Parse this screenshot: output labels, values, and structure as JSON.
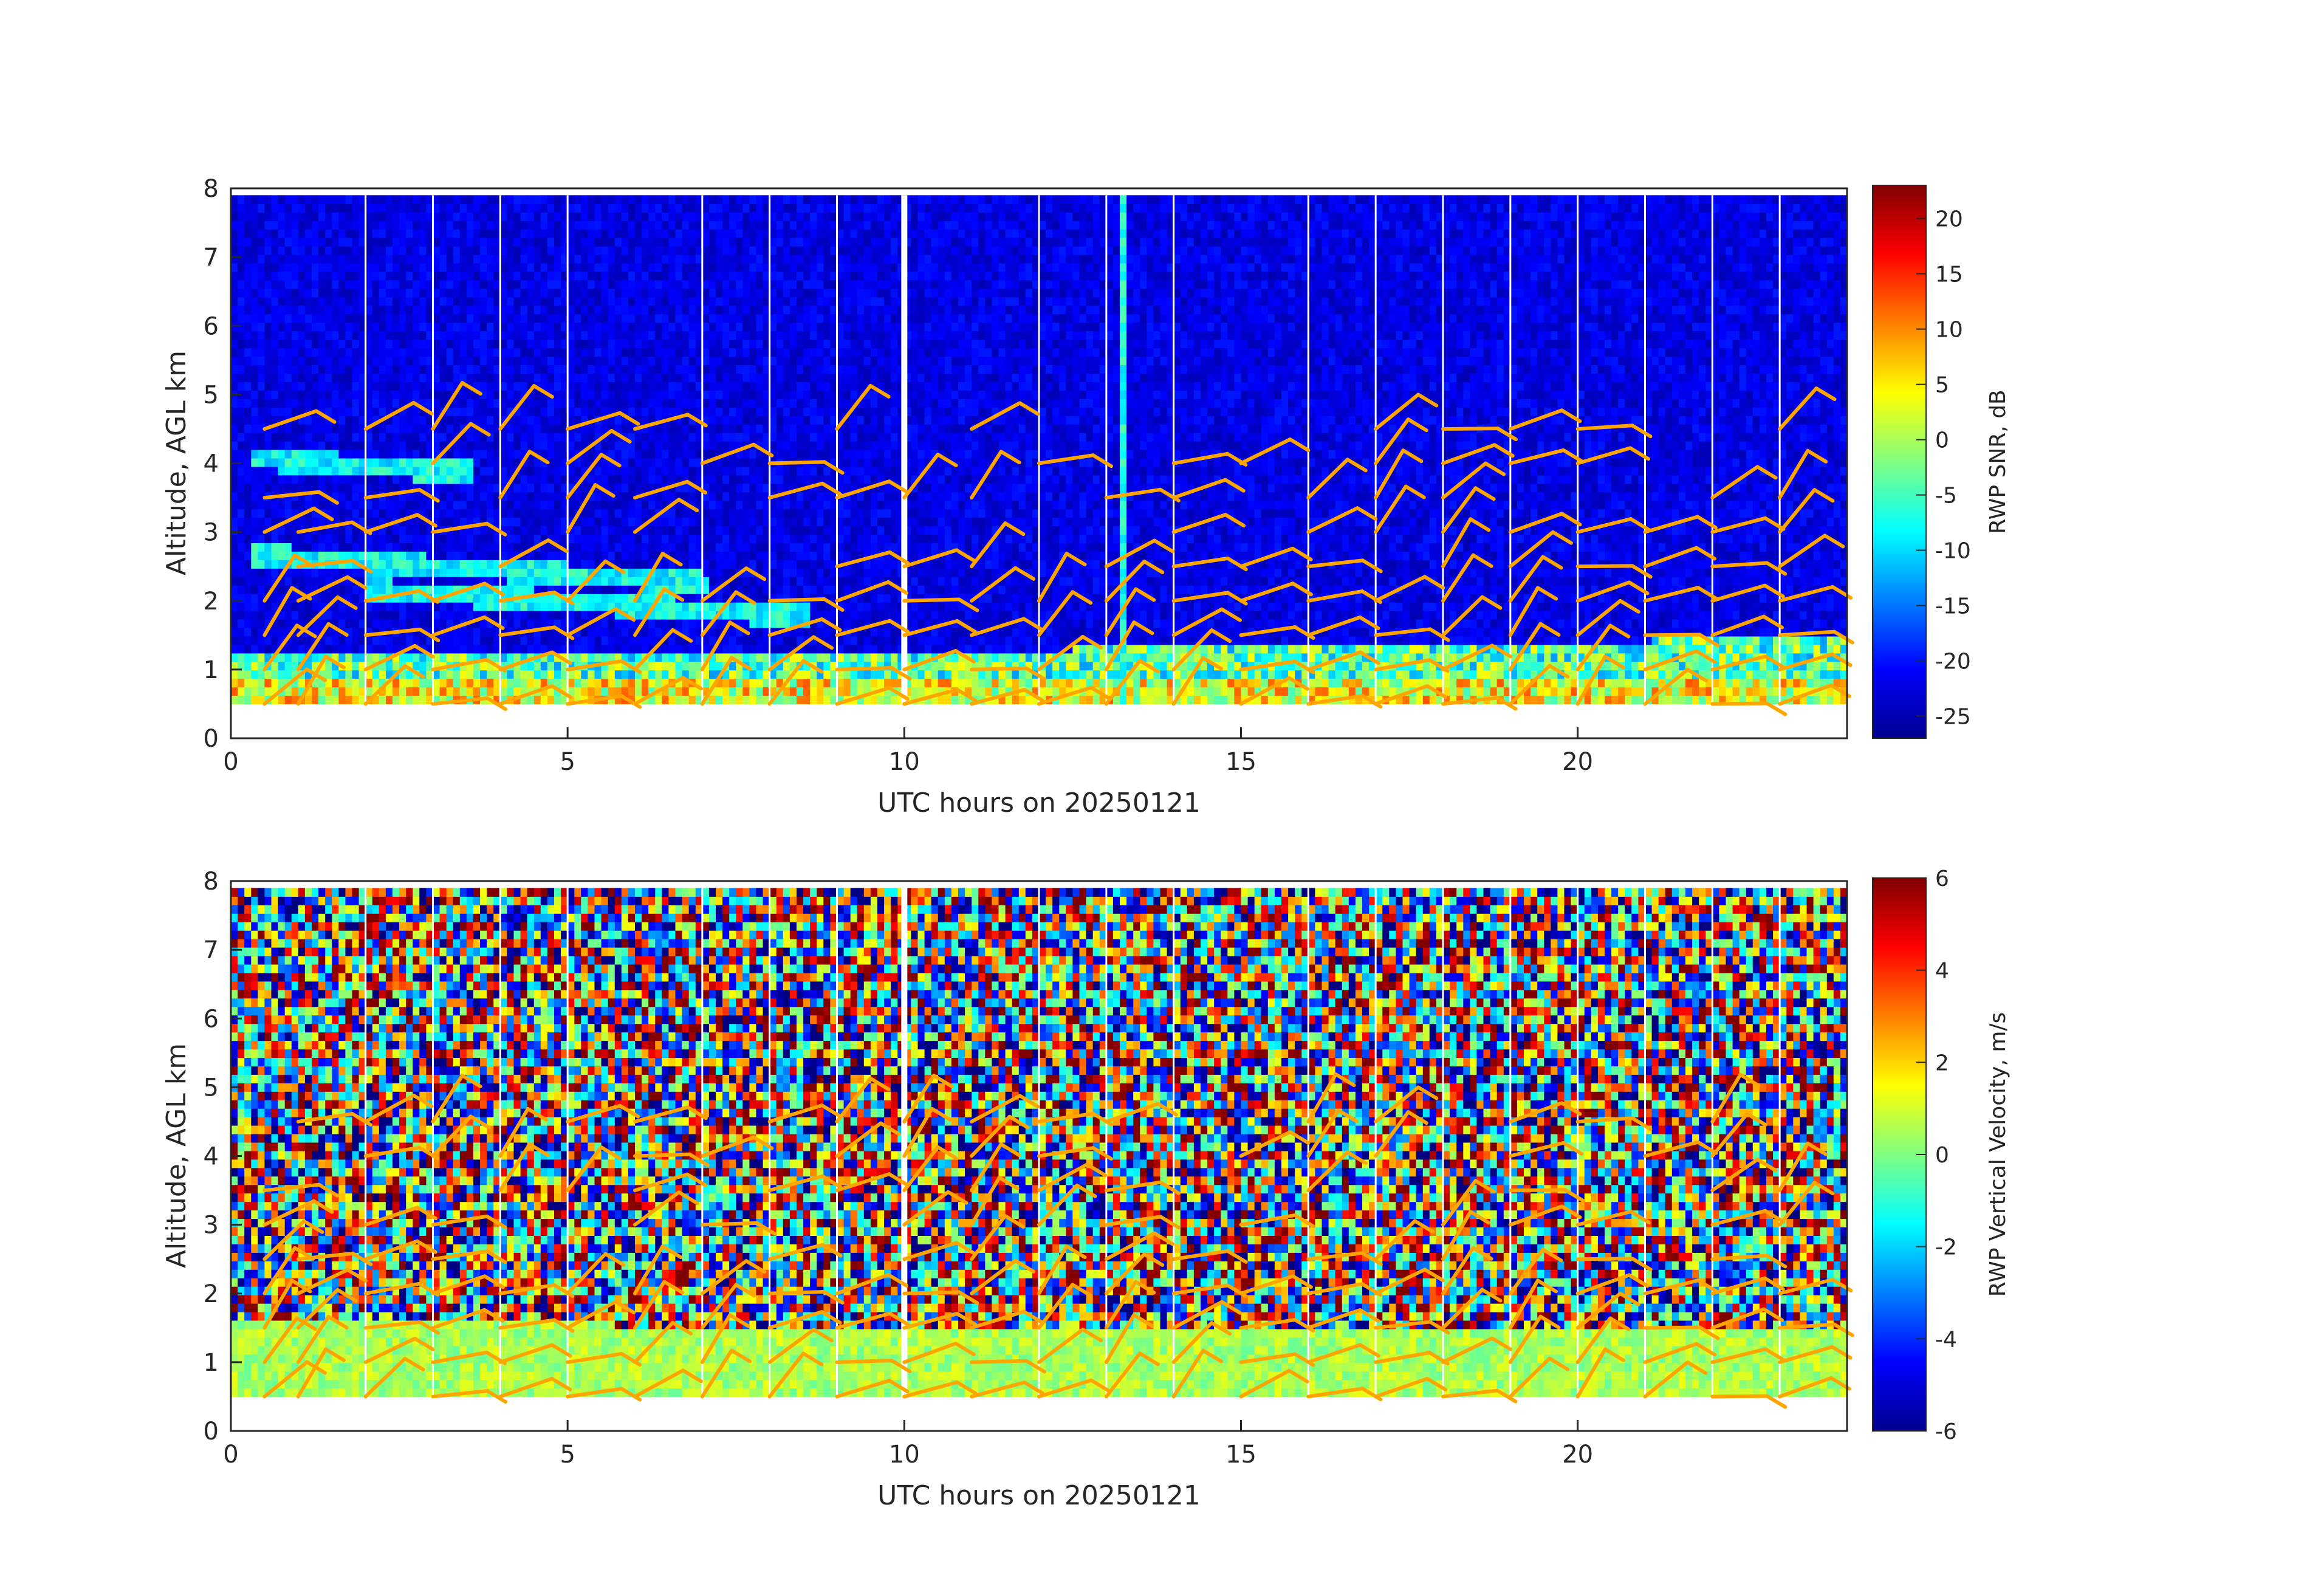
{
  "chart_data": [
    {
      "type": "heatmap",
      "name": "snr-panel",
      "xlabel": "UTC hours on 20250121",
      "ylabel": "Altitude, AGL km",
      "xlim": [
        0,
        24
      ],
      "ylim": [
        0,
        8
      ],
      "xticks": [
        0,
        5,
        10,
        15,
        20
      ],
      "yticks": [
        0,
        1,
        2,
        3,
        4,
        5,
        6,
        7,
        8
      ],
      "colorbar": {
        "label": "RWP SNR, dB",
        "colormap": "jet",
        "range": [
          -27,
          23
        ],
        "ticks": [
          20,
          15,
          10,
          5,
          0,
          -5,
          -10,
          -15,
          -20,
          -25
        ]
      },
      "data_altitude_range_km": [
        0.5,
        7.9
      ],
      "features": {
        "background_snr_db": -22,
        "boundary_layer_top_km": [
          [
            0,
            1.2
          ],
          [
            10,
            1.2
          ],
          [
            16,
            1.3
          ],
          [
            24,
            1.4
          ]
        ],
        "elevated_layers_km": [
          [
            0.3,
            2.6,
            7.0
          ],
          [
            0.3,
            4.0,
            3.5
          ],
          [
            2.0,
            2.1,
            8.5
          ]
        ],
        "precip_spike_hour": 13.2,
        "data_gap_hours": [
          2.0,
          3.0,
          4.0,
          5.0,
          7.0,
          8.0,
          9.0,
          10.0,
          12.0,
          13.0,
          14.0,
          16.0,
          17.0,
          18.0,
          19.0,
          20.0,
          21.0,
          22.0,
          23.0
        ]
      },
      "wind_barbs": {
        "color": "#ffa500",
        "profiles_hours": [
          0.5,
          1.0,
          2.0,
          3.0,
          4.0,
          5.0,
          6.0,
          7.0,
          8.0,
          9.0,
          10.0,
          11.0,
          12.0,
          13.0,
          14.0,
          15.0,
          16.0,
          17.0,
          18.0,
          19.0,
          20.0,
          21.0,
          22.0,
          23.0
        ]
      }
    },
    {
      "type": "heatmap",
      "name": "velocity-panel",
      "xlabel": "UTC hours on 20250121",
      "ylabel": "Altitude, AGL km",
      "xlim": [
        0,
        24
      ],
      "ylim": [
        0,
        8
      ],
      "xticks": [
        0,
        5,
        10,
        15,
        20
      ],
      "yticks": [
        0,
        1,
        2,
        3,
        4,
        5,
        6,
        7,
        8
      ],
      "colorbar": {
        "label": "RWP Vertical Velocity, m/s",
        "colormap": "jet",
        "range": [
          -6,
          6
        ],
        "ticks": [
          6,
          4,
          2,
          0,
          -2,
          -4,
          -6
        ]
      },
      "data_altitude_range_km": [
        0.5,
        7.9
      ],
      "features": {
        "noise_above_boundary_layer": true,
        "near_zero_layer_top_km": [
          [
            0,
            1.6
          ],
          [
            10,
            1.4
          ],
          [
            24,
            1.4
          ]
        ]
      },
      "wind_barbs": {
        "color": "#ffa500",
        "profiles_hours": [
          0.5,
          1.0,
          2.0,
          3.0,
          4.0,
          5.0,
          6.0,
          7.0,
          8.0,
          9.0,
          10.0,
          11.0,
          12.0,
          13.0,
          14.0,
          15.0,
          16.0,
          17.0,
          18.0,
          19.0,
          20.0,
          21.0,
          22.0,
          23.0
        ]
      }
    }
  ]
}
